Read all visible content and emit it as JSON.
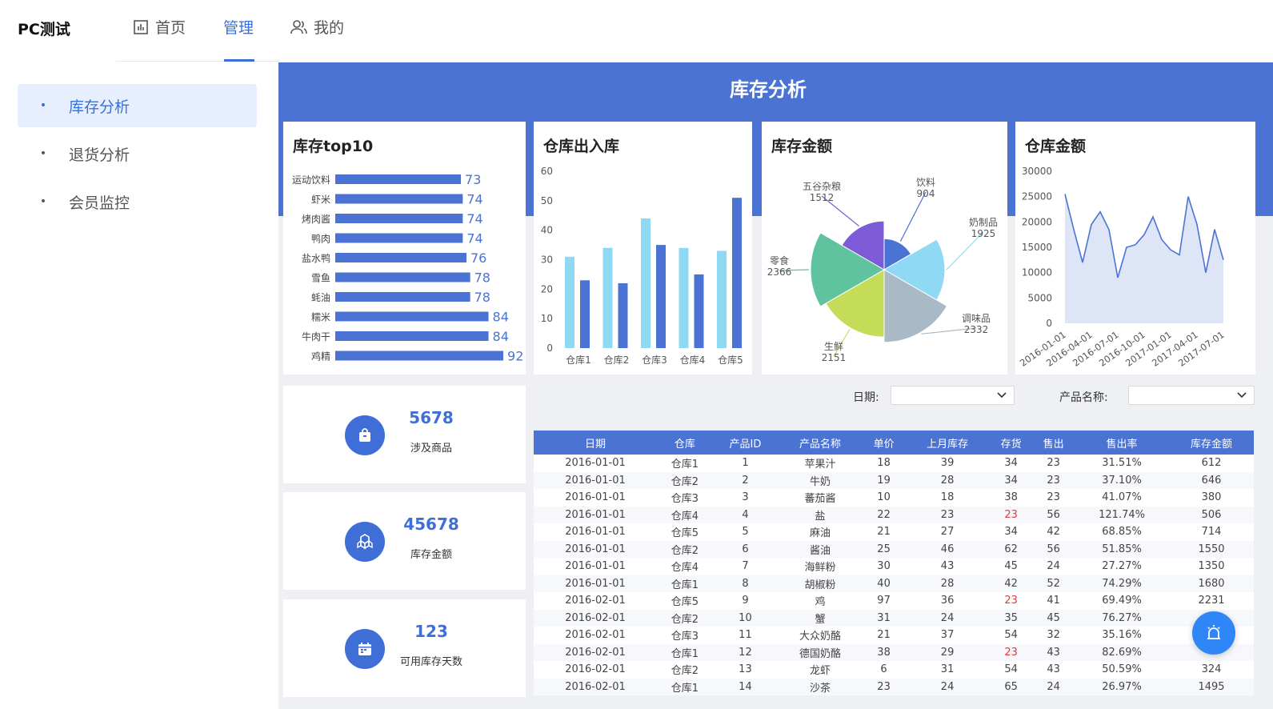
{
  "app": {
    "brand": "PC测试"
  },
  "nav": [
    {
      "label": "首页"
    },
    {
      "label": "管理"
    },
    {
      "label": "我的"
    }
  ],
  "sidebar": {
    "items": [
      {
        "label": "库存分析",
        "active": true
      },
      {
        "label": "退货分析"
      },
      {
        "label": "会员监控"
      }
    ]
  },
  "banner": {
    "title": "库存分析"
  },
  "charts": {
    "top10": {
      "title": "库存top10"
    },
    "inout": {
      "title": "仓库出入库"
    },
    "pie": {
      "title": "库存金额"
    },
    "line": {
      "title": "仓库金额"
    }
  },
  "chart_data": [
    {
      "type": "bar",
      "orientation": "horizontal",
      "categories": [
        "运动饮料",
        "虾米",
        "烤肉酱",
        "鸭肉",
        "盐水鸭",
        "雪鱼",
        "蚝油",
        "糯米",
        "牛肉干",
        "鸡精"
      ],
      "values": [
        73,
        74,
        74,
        74,
        76,
        78,
        78,
        84,
        84,
        92
      ],
      "color": "#4a73d3"
    },
    {
      "type": "bar",
      "categories": [
        "仓库1",
        "仓库2",
        "仓库3",
        "仓库4",
        "仓库5"
      ],
      "series": [
        {
          "values": [
            31,
            34,
            44,
            34,
            33
          ],
          "color": "#8fd9f5"
        },
        {
          "values": [
            23,
            22,
            35,
            25,
            51
          ],
          "color": "#4a73d3"
        }
      ],
      "ylim": [
        0,
        60
      ],
      "yticks": [
        0,
        10,
        20,
        30,
        40,
        50,
        60
      ]
    },
    {
      "type": "pie",
      "rose": true,
      "slices": [
        {
          "label": "饮料",
          "value": 904,
          "color": "#4a73d3"
        },
        {
          "label": "奶制品",
          "value": 1925,
          "color": "#8fd9f5"
        },
        {
          "label": "调味品",
          "value": 2332,
          "color": "#a9b9c6"
        },
        {
          "label": "生鲜",
          "value": 2151,
          "color": "#c5dc58"
        },
        {
          "label": "零食",
          "value": 2366,
          "color": "#5fc3a0"
        },
        {
          "label": "五谷杂粮",
          "value": 1512,
          "color": "#7d5bd6"
        }
      ]
    },
    {
      "type": "area",
      "x": [
        "2016-01-01",
        "2016-02-01",
        "2016-03-01",
        "2016-04-01",
        "2016-05-01",
        "2016-06-01",
        "2016-07-01",
        "2016-08-01",
        "2016-09-01",
        "2016-10-01",
        "2016-11-01",
        "2016-12-01",
        "2017-01-01",
        "2017-02-01",
        "2017-03-01",
        "2017-04-01",
        "2017-05-01",
        "2017-06-01",
        "2017-07-01"
      ],
      "y": [
        25500,
        18500,
        12000,
        19500,
        22000,
        18500,
        9000,
        15000,
        15500,
        17500,
        21000,
        16500,
        14500,
        13500,
        25000,
        19500,
        10000,
        18500,
        12500
      ],
      "ylim": [
        0,
        30000
      ],
      "yticks": [
        0,
        5000,
        10000,
        15000,
        20000,
        25000,
        30000
      ],
      "xticks": [
        "2016-01-01",
        "2016-04-01",
        "2016-07-01",
        "2016-10-01",
        "2017-01-01",
        "2017-04-01",
        "2017-07-01"
      ],
      "color": "#4a73d3",
      "fill": "#dde5f7"
    }
  ],
  "stats": [
    {
      "value": "5678",
      "label": "涉及商品",
      "icon": "shopping-bag-icon"
    },
    {
      "value": "45678",
      "label": "库存金额",
      "icon": "boxes-icon"
    },
    {
      "value": "123",
      "label": "可用库存天数",
      "icon": "calendar-icon"
    }
  ],
  "filters": {
    "date_label": "日期:",
    "product_label": "产品名称:"
  },
  "table": {
    "headers": [
      "日期",
      "仓库",
      "产品ID",
      "产品名称",
      "单价",
      "上月库存",
      "存货",
      "售出",
      "售出率",
      "库存金额"
    ],
    "rows": [
      [
        "2016-01-01",
        "仓库1",
        "1",
        "苹果汁",
        "18",
        "39",
        "34",
        "23",
        "31.51%",
        "612"
      ],
      [
        "2016-01-01",
        "仓库2",
        "2",
        "牛奶",
        "19",
        "28",
        "34",
        "23",
        "37.10%",
        "646"
      ],
      [
        "2016-01-01",
        "仓库3",
        "3",
        "蕃茄酱",
        "10",
        "18",
        "38",
        "23",
        "41.07%",
        "380"
      ],
      [
        "2016-01-01",
        "仓库4",
        "4",
        "盐",
        "22",
        "23",
        "23",
        "56",
        "121.74%",
        "506"
      ],
      [
        "2016-01-01",
        "仓库5",
        "5",
        "麻油",
        "21",
        "27",
        "34",
        "42",
        "68.85%",
        "714"
      ],
      [
        "2016-01-01",
        "仓库2",
        "6",
        "酱油",
        "25",
        "46",
        "62",
        "56",
        "51.85%",
        "1550"
      ],
      [
        "2016-01-01",
        "仓库4",
        "7",
        "海鲜粉",
        "30",
        "43",
        "45",
        "24",
        "27.27%",
        "1350"
      ],
      [
        "2016-01-01",
        "仓库1",
        "8",
        "胡椒粉",
        "40",
        "28",
        "42",
        "52",
        "74.29%",
        "1680"
      ],
      [
        "2016-02-01",
        "仓库5",
        "9",
        "鸡",
        "97",
        "36",
        "23",
        "41",
        "69.49%",
        "2231"
      ],
      [
        "2016-02-01",
        "仓库2",
        "10",
        "蟹",
        "31",
        "24",
        "35",
        "45",
        "76.27%",
        ""
      ],
      [
        "2016-02-01",
        "仓库3",
        "11",
        "大众奶酪",
        "21",
        "37",
        "54",
        "32",
        "35.16%",
        ""
      ],
      [
        "2016-02-01",
        "仓库1",
        "12",
        "德国奶酪",
        "38",
        "29",
        "23",
        "43",
        "82.69%",
        ""
      ],
      [
        "2016-02-01",
        "仓库2",
        "13",
        "龙虾",
        "6",
        "31",
        "54",
        "43",
        "50.59%",
        "324"
      ],
      [
        "2016-02-01",
        "仓库1",
        "14",
        "沙茶",
        "23",
        "24",
        "65",
        "24",
        "26.97%",
        "1495"
      ]
    ],
    "highlight_color": "#e53935"
  }
}
